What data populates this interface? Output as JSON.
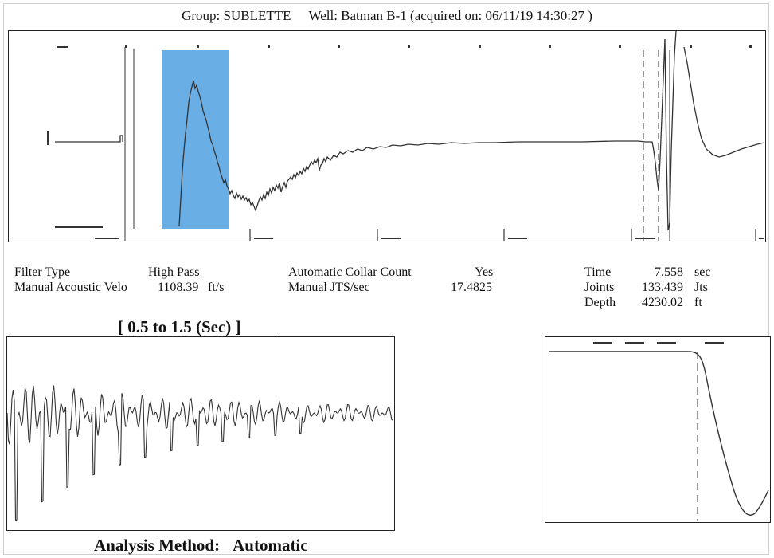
{
  "header": {
    "group_label": "Group: SUBLETTE",
    "well_label": "Well: Batman B-1 (acquired on: 06/11/19 14:30:27 )"
  },
  "settings": {
    "filter_type_label": "Filter Type",
    "filter_type_value": "High Pass",
    "manual_velocity_label": "Manual Acoustic Velo",
    "manual_velocity_value": "1108.39",
    "manual_velocity_unit": "ft/s",
    "auto_collar_label": "Automatic Collar Count",
    "auto_collar_value": "Yes",
    "manual_jts_label": "Manual JTS/sec",
    "manual_jts_value": "17.4825"
  },
  "results": {
    "time_label": "Time",
    "time_value": "7.558",
    "time_unit": "sec",
    "joints_label": "Joints",
    "joints_value": "133.439",
    "joints_unit": "Jts",
    "depth_label": "Depth",
    "depth_value": "4230.02",
    "depth_unit": "ft"
  },
  "window_label": "[ 0.5  to  1.5 (Sec) ]",
  "footer": {
    "label": "Analysis Method:",
    "value": "Automatic"
  },
  "colors": {
    "selection": "#6aaee6",
    "trace": "#333333",
    "frame": "#222222"
  }
}
